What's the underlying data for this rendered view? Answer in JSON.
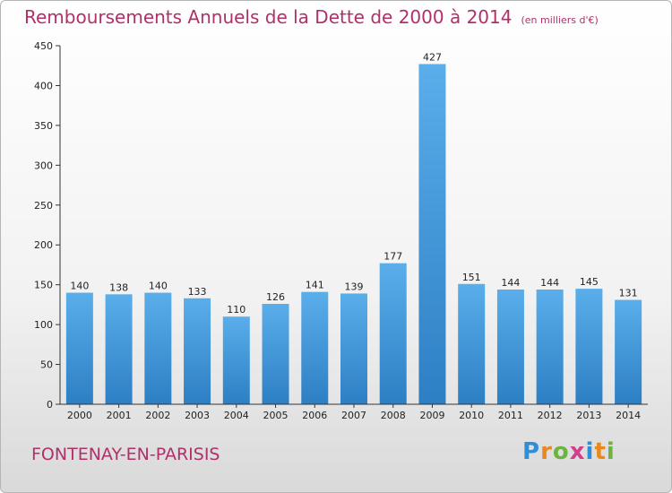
{
  "title": "Remboursements Annuels de la Dette de 2000 à 2014",
  "subtitle": "(en milliers d'€)",
  "place": "FONTENAY-EN-PARISIS",
  "logo": {
    "letters": [
      "P",
      "r",
      "o",
      "x",
      "i",
      "t",
      "i"
    ],
    "colors": [
      "#2e8fd6",
      "#e8891f",
      "#6cb33f",
      "#d43f8d",
      "#2e8fd6",
      "#e8891f",
      "#6cb33f"
    ]
  },
  "chart_data": {
    "type": "bar",
    "categories": [
      "2000",
      "2001",
      "2002",
      "2003",
      "2004",
      "2005",
      "2006",
      "2007",
      "2008",
      "2009",
      "2010",
      "2011",
      "2012",
      "2013",
      "2014"
    ],
    "values": [
      140,
      138,
      140,
      133,
      110,
      126,
      141,
      139,
      177,
      427,
      151,
      144,
      144,
      145,
      131
    ],
    "value_labels": [
      "140",
      "138",
      "140",
      "133",
      "110",
      "126",
      "141",
      "139",
      "177",
      "427",
      "151",
      "144",
      "144",
      "145",
      "131"
    ],
    "yticks": [
      "0",
      "50",
      "100",
      "150",
      "200",
      "250",
      "300",
      "350",
      "400",
      "450"
    ],
    "ylim": [
      0,
      450
    ],
    "grid": false,
    "bar_color": "#4a9fe0"
  }
}
